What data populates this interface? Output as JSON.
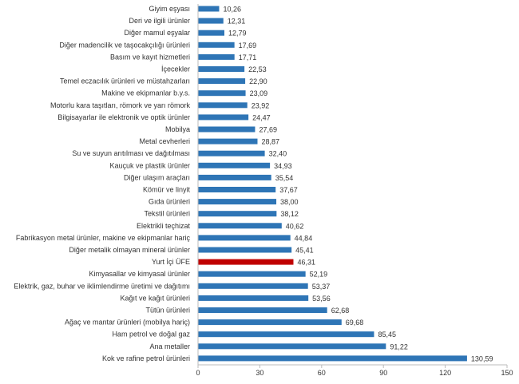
{
  "chart_data": {
    "type": "bar",
    "orientation": "horizontal",
    "title": "",
    "xlabel": "",
    "ylabel": "",
    "xlim": [
      0,
      150
    ],
    "xticks": [
      0,
      30,
      60,
      90,
      120,
      150
    ],
    "grid": false,
    "legend": "none",
    "colors": {
      "default": "#2e75b6",
      "highlight": "#c00000"
    },
    "highlight_category": "Yurt İçi ÜFE",
    "categories": [
      "Giyim eşyası",
      "Deri ve ilgili ürünler",
      "Diğer mamul eşyalar",
      "Diğer madencilik ve taşocakçılığı ürünleri",
      "Basım ve kayıt hizmetleri",
      "İçecekler",
      "Temel eczacılık ürünleri ve müstahzarları",
      "Makine ve ekipmanlar b.y.s.",
      "Motorlu kara taşıtları, römork ve yarı römork",
      "Bilgisayarlar ile elektronik ve optik ürünler",
      "Mobilya",
      "Metal cevherleri",
      "Su ve suyun arıtılması ve dağıtılması",
      "Kauçuk ve plastik ürünler",
      "Diğer ulaşım araçları",
      "Kömür ve linyit",
      "Gıda ürünleri",
      "Tekstil ürünleri",
      "Elektrikli teçhizat",
      "Fabrikasyon metal ürünler, makine ve ekipmanlar hariç",
      "Diğer metalik olmayan mineral ürünler",
      "Yurt İçi ÜFE",
      "Kimyasallar ve kimyasal ürünler",
      "Elektrik, gaz, buhar ve iklimlendirme üretimi ve dağıtımı",
      "Kağıt ve kağıt ürünleri",
      "Tütün ürünleri",
      "Ağaç ve mantar ürünleri (mobilya hariç)",
      "Ham petrol ve doğal gaz",
      "Ana metaller",
      "Kok ve rafine petrol ürünleri"
    ],
    "values": [
      10.26,
      12.31,
      12.79,
      17.69,
      17.71,
      22.53,
      22.9,
      23.09,
      23.92,
      24.47,
      27.69,
      28.87,
      32.4,
      34.93,
      35.54,
      37.67,
      38.0,
      38.12,
      40.62,
      44.84,
      45.41,
      46.31,
      52.19,
      53.37,
      53.56,
      62.68,
      69.68,
      85.45,
      91.22,
      130.59
    ],
    "data_labels": [
      "10,26",
      "12,31",
      "12,79",
      "17,69",
      "17,71",
      "22,53",
      "22,90",
      "23,09",
      "23,92",
      "24,47",
      "27,69",
      "28,87",
      "32,40",
      "34,93",
      "35,54",
      "37,67",
      "38,00",
      "38,12",
      "40,62",
      "44,84",
      "45,41",
      "46,31",
      "52,19",
      "53,37",
      "53,56",
      "62,68",
      "69,68",
      "85,45",
      "91,22",
      "130,59"
    ]
  }
}
